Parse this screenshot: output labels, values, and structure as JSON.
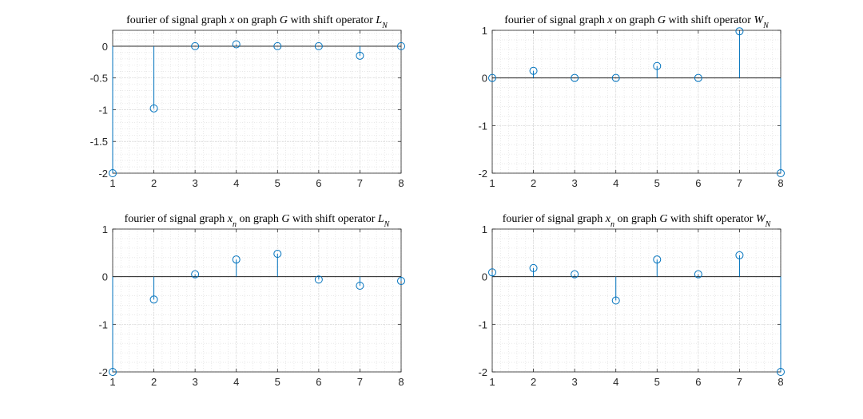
{
  "colors": {
    "stem": "#0072bd",
    "axes": "#262626",
    "grid": "#dcdcdc",
    "zero_line": "#000000"
  },
  "chart_data": [
    {
      "type": "stem",
      "title_parts": [
        {
          "text": "fourier of signal graph ",
          "math": false
        },
        {
          "text": "x",
          "math": true
        },
        {
          "text": " on graph ",
          "math": false
        },
        {
          "text": "G",
          "math": true
        },
        {
          "text": " with shift operator ",
          "math": false
        },
        {
          "text": "L",
          "math": true
        },
        {
          "text": "N",
          "math": true,
          "sub": true
        }
      ],
      "x": [
        1,
        2,
        3,
        4,
        5,
        6,
        7,
        8
      ],
      "values": [
        -2,
        -0.98,
        0,
        0.03,
        0,
        0,
        -0.15,
        0
      ],
      "xlim": [
        1,
        8
      ],
      "ylim": [
        -2,
        0.25
      ],
      "xticks": [
        "1",
        "2",
        "3",
        "4",
        "5",
        "6",
        "7",
        "8"
      ],
      "yticks": [
        0,
        -0.5,
        -1,
        -1.5,
        -2
      ],
      "ytick_labels": [
        "0",
        "-0.5",
        "-1",
        "-1.5",
        "-2"
      ],
      "grid": "on, with minor grid",
      "marker": "circle"
    },
    {
      "type": "stem",
      "title_parts": [
        {
          "text": "fourier of signal graph ",
          "math": false
        },
        {
          "text": "x",
          "math": true
        },
        {
          "text": " on graph ",
          "math": false
        },
        {
          "text": "G",
          "math": true
        },
        {
          "text": " with shift operator ",
          "math": false
        },
        {
          "text": "W",
          "math": true
        },
        {
          "text": "N",
          "math": true,
          "sub": true
        }
      ],
      "x": [
        1,
        2,
        3,
        4,
        5,
        6,
        7,
        8
      ],
      "values": [
        0,
        0.15,
        0,
        0,
        0.25,
        0,
        0.98,
        -2
      ],
      "xlim": [
        1,
        8
      ],
      "ylim": [
        -2,
        1
      ],
      "xticks": [
        "1",
        "2",
        "3",
        "4",
        "5",
        "6",
        "7",
        "8"
      ],
      "yticks": [
        1,
        0,
        -1,
        -2
      ],
      "ytick_labels": [
        "1",
        "0",
        "-1",
        "-2"
      ],
      "grid": "on, with minor grid",
      "marker": "circle"
    },
    {
      "type": "stem",
      "title_parts": [
        {
          "text": "fourier of signal graph ",
          "math": false
        },
        {
          "text": "x",
          "math": true
        },
        {
          "text": "n",
          "math": true,
          "sub": true
        },
        {
          "text": " on graph ",
          "math": false
        },
        {
          "text": "G",
          "math": true
        },
        {
          "text": " with shift operator ",
          "math": false
        },
        {
          "text": "L",
          "math": true
        },
        {
          "text": "N",
          "math": true,
          "sub": true
        }
      ],
      "x": [
        1,
        2,
        3,
        4,
        5,
        6,
        7,
        8
      ],
      "values": [
        -2,
        -0.48,
        0.05,
        0.36,
        0.48,
        -0.06,
        -0.19,
        -0.09
      ],
      "xlim": [
        1,
        8
      ],
      "ylim": [
        -2,
        1
      ],
      "xticks": [
        "1",
        "2",
        "3",
        "4",
        "5",
        "6",
        "7",
        "8"
      ],
      "yticks": [
        1,
        0,
        -1,
        -2
      ],
      "ytick_labels": [
        "1",
        "0",
        "-1",
        "-2"
      ],
      "grid": "on, with minor grid",
      "marker": "circle"
    },
    {
      "type": "stem",
      "title_parts": [
        {
          "text": "fourier of signal graph ",
          "math": false
        },
        {
          "text": "x",
          "math": true
        },
        {
          "text": "n",
          "math": true,
          "sub": true
        },
        {
          "text": " on graph ",
          "math": false
        },
        {
          "text": "G",
          "math": true
        },
        {
          "text": " with shift operator ",
          "math": false
        },
        {
          "text": "W",
          "math": true
        },
        {
          "text": "N",
          "math": true,
          "sub": true
        }
      ],
      "x": [
        1,
        2,
        3,
        4,
        5,
        6,
        7,
        8
      ],
      "values": [
        0.09,
        0.18,
        0.05,
        -0.5,
        0.36,
        0.05,
        0.45,
        -2
      ],
      "xlim": [
        1,
        8
      ],
      "ylim": [
        -2,
        1
      ],
      "xticks": [
        "1",
        "2",
        "3",
        "4",
        "5",
        "6",
        "7",
        "8"
      ],
      "yticks": [
        1,
        0,
        -1,
        -2
      ],
      "ytick_labels": [
        "1",
        "0",
        "-1",
        "-2"
      ],
      "grid": "on, with minor grid",
      "marker": "circle"
    }
  ]
}
